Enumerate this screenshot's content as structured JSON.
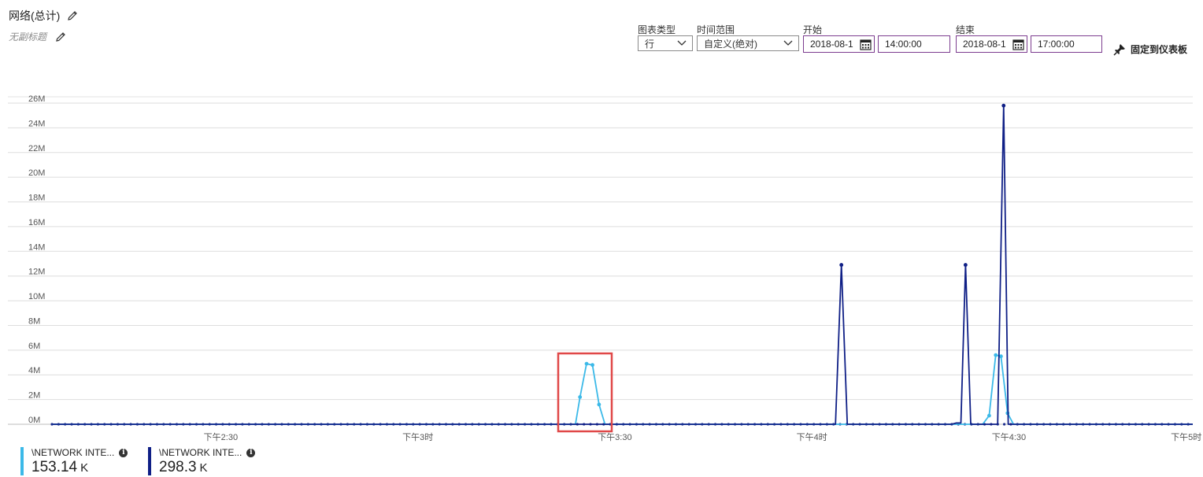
{
  "header": {
    "title": "网络(总计)",
    "subtitle": "无副标题"
  },
  "controls": {
    "chart_type_label": "图表类型",
    "chart_type_value": "行",
    "time_range_label": "时间范围",
    "time_range_value": "自定义(绝对)",
    "start_label": "开始",
    "start_date": "2018-08-1",
    "start_time": "14:00:00",
    "end_label": "结束",
    "end_date": "2018-08-1",
    "end_time": "17:00:00",
    "pin_label": "固定到仪表板"
  },
  "legend": [
    {
      "name": "\\NETWORK INTE...",
      "value": "153.14",
      "unit": "K",
      "color": "#3bb9e8"
    },
    {
      "name": "\\NETWORK INTE...",
      "value": "298.3",
      "unit": "K",
      "color": "#0f1f86"
    }
  ],
  "chart_data": {
    "type": "line",
    "y_ticks": [
      "0M",
      "2M",
      "4M",
      "6M",
      "8M",
      "10M",
      "12M",
      "14M",
      "16M",
      "18M",
      "20M",
      "22M",
      "24M",
      "26M"
    ],
    "ylim": [
      0,
      26
    ],
    "x_ticks": [
      {
        "label": "下午2:30",
        "t": 30
      },
      {
        "label": "下午3时",
        "t": 60
      },
      {
        "label": "下午3:30",
        "t": 90
      },
      {
        "label": "下午4时",
        "t": 120
      },
      {
        "label": "下午4:30",
        "t": 150
      },
      {
        "label": "下午5时",
        "t": 177
      }
    ],
    "xlim": [
      4.3,
      178
    ],
    "grid": true,
    "series": [
      {
        "color": "#3bb9e8",
        "points": [
          [
            84,
            0
          ],
          [
            84.7,
            2.2
          ],
          [
            85.7,
            4.9
          ],
          [
            86.6,
            4.8
          ],
          [
            87.6,
            1.6
          ],
          [
            88.5,
            0
          ],
          [
            146,
            0
          ],
          [
            147,
            0.7
          ],
          [
            148,
            5.6
          ],
          [
            148.8,
            5.5
          ],
          [
            149.8,
            0.9
          ],
          [
            150.7,
            0
          ]
        ]
      },
      {
        "color": "#0f1f86",
        "points": [
          [
            123.6,
            0
          ],
          [
            124.5,
            12.9
          ],
          [
            125.4,
            0
          ],
          [
            141.3,
            0
          ],
          [
            142,
            0.1
          ],
          [
            142.7,
            0.1
          ],
          [
            143.4,
            12.9
          ],
          [
            144.2,
            0
          ],
          [
            148.3,
            0
          ],
          [
            149.2,
            25.8
          ],
          [
            149.9,
            0
          ]
        ]
      }
    ]
  }
}
